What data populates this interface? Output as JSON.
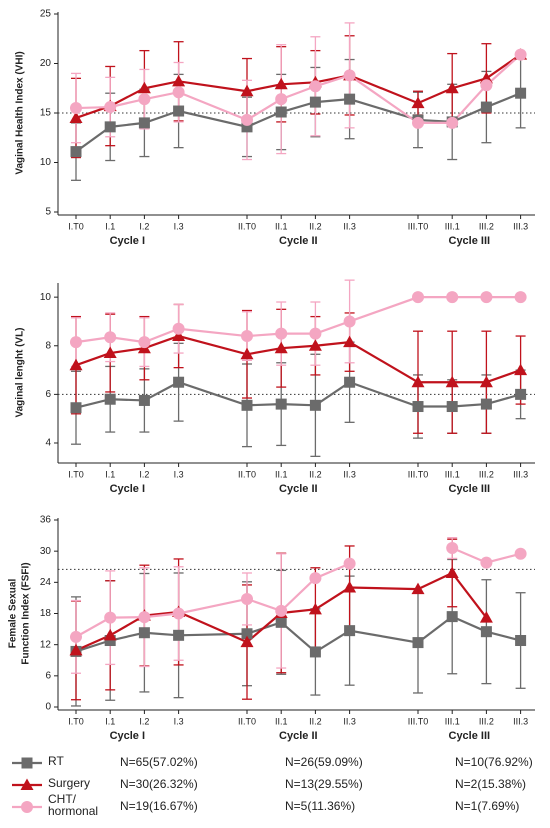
{
  "chart_data": [
    {
      "type": "line",
      "ylabel": [
        "Vaginal Health Index (VHI)"
      ],
      "categories": [
        "I.T0",
        "I.1",
        "I.2",
        "I.3",
        "II.T0",
        "II.1",
        "II.2",
        "II.3",
        "III.T0",
        "III.1",
        "III.2",
        "III.3"
      ],
      "group_labels": [
        "Cycle I",
        "Cycle II",
        "Cycle III"
      ],
      "ylim": [
        5,
        25
      ],
      "yticks": [
        5,
        10,
        15,
        20,
        25
      ],
      "reference_line": 15,
      "series": [
        {
          "color": "#6b6b6b",
          "marker": "square",
          "values": [
            11.1,
            13.6,
            14.0,
            15.2,
            13.6,
            15.1,
            16.1,
            16.4,
            14.3,
            14.1,
            15.6,
            17.0
          ],
          "errors": [
            2.9,
            3.4,
            3.4,
            3.7,
            3.0,
            3.8,
            3.5,
            4.0,
            2.8,
            3.8,
            3.6,
            3.5
          ]
        },
        {
          "color": "#c0121c",
          "marker": "triangle",
          "values": [
            14.5,
            15.7,
            17.5,
            18.2,
            17.2,
            17.9,
            18.1,
            18.8,
            16.0,
            17.5,
            18.5,
            20.9
          ],
          "errors": [
            4.0,
            4.0,
            3.8,
            4.0,
            3.3,
            3.8,
            3.2,
            4.0,
            1.2,
            3.5,
            3.5,
            null
          ]
        },
        {
          "color": "#f4a6c2",
          "marker": "circle",
          "values": [
            15.5,
            15.6,
            16.4,
            17.1,
            14.3,
            16.4,
            17.7,
            18.8,
            14.0,
            14.0,
            17.8,
            20.9
          ],
          "errors": [
            3.5,
            3.0,
            3.0,
            3.0,
            4.0,
            5.5,
            5.0,
            5.3,
            null,
            null,
            null,
            null
          ]
        }
      ]
    },
    {
      "type": "line",
      "ylabel": [
        "Vaginal lenght (VL)"
      ],
      "categories": [
        "I.T0",
        "I.1",
        "I.2",
        "I.3",
        "II.T0",
        "II.1",
        "II.2",
        "II.3",
        "III.T0",
        "III.1",
        "III.2",
        "III.3"
      ],
      "group_labels": [
        "Cycle I",
        "Cycle II",
        "Cycle III"
      ],
      "ylim": [
        3.3,
        10.5
      ],
      "yticks": [
        4,
        6,
        8,
        10
      ],
      "reference_line": 6,
      "series": [
        {
          "color": "#6b6b6b",
          "marker": "square",
          "values": [
            5.45,
            5.8,
            5.75,
            6.5,
            5.55,
            5.6,
            5.55,
            6.5,
            5.5,
            5.5,
            5.6,
            6.0
          ],
          "errors": [
            1.5,
            1.35,
            1.3,
            1.6,
            1.7,
            1.7,
            2.1,
            1.65,
            1.3,
            1.1,
            1.2,
            1.0
          ]
        },
        {
          "color": "#c0121c",
          "marker": "triangle",
          "values": [
            7.2,
            7.7,
            7.9,
            8.4,
            7.65,
            7.9,
            8.0,
            8.15,
            6.5,
            6.5,
            6.5,
            7.0
          ],
          "errors": [
            2.0,
            1.6,
            1.3,
            1.3,
            1.8,
            1.6,
            1.2,
            1.2,
            2.1,
            2.1,
            2.1,
            1.4
          ]
        },
        {
          "color": "#f4a6c2",
          "marker": "circle",
          "values": [
            8.15,
            8.35,
            8.15,
            8.7,
            8.4,
            8.5,
            8.5,
            9.0,
            10,
            10,
            10,
            10
          ],
          "errors": [
            1.0,
            1.0,
            1.0,
            1.0,
            1.0,
            1.3,
            1.3,
            1.7,
            null,
            null,
            null,
            null
          ]
        }
      ]
    },
    {
      "type": "line",
      "ylabel": [
        "Female Sexual",
        "Function Index (FSFI)"
      ],
      "categories": [
        "I.T0",
        "I.1",
        "I.2",
        "I.3",
        "II.T0",
        "II.1",
        "II.2",
        "II.3",
        "III.T0",
        "III.1",
        "III.2",
        "III.3"
      ],
      "group_labels": [
        "Cycle I",
        "Cycle II",
        "Cycle III"
      ],
      "ylim": [
        0,
        36
      ],
      "yticks": [
        0,
        6,
        12,
        18,
        24,
        30,
        36
      ],
      "reference_line": 26.5,
      "series": [
        {
          "color": "#6b6b6b",
          "marker": "square",
          "values": [
            10.7,
            12.8,
            14.3,
            13.8,
            14.1,
            16.3,
            10.6,
            14.7,
            12.4,
            17.4,
            14.5,
            12.8
          ],
          "errors": [
            10.5,
            11.5,
            11.4,
            12.0,
            10.0,
            10.0,
            8.3,
            10.5,
            9.7,
            11.0,
            10.0,
            9.2
          ]
        },
        {
          "color": "#c0121c",
          "marker": "triangle",
          "values": [
            10.9,
            13.8,
            17.6,
            18.3,
            12.5,
            18.1,
            18.8,
            23.0,
            22.7,
            25.8,
            17.2,
            null
          ],
          "errors": [
            9.5,
            10.5,
            9.7,
            10.2,
            11.0,
            11.5,
            8.0,
            8.0,
            null,
            6.5,
            null,
            null
          ]
        },
        {
          "color": "#f4a6c2",
          "marker": "circle",
          "values": [
            13.5,
            17.2,
            17.3,
            18.0,
            20.8,
            18.5,
            24.8,
            27.6,
            null,
            30.6,
            27.8,
            29.5
          ],
          "errors": [
            7.0,
            9.0,
            9.5,
            9.0,
            5.0,
            11.0,
            null,
            null,
            null,
            2.0,
            null,
            null
          ]
        }
      ]
    }
  ],
  "legend": {
    "rows": [
      {
        "name": "RT",
        "color": "#6b6b6b",
        "marker": "square",
        "cells": [
          "N=65(57.02%)",
          "N=26(59.09%)",
          "N=10(76.92%)"
        ]
      },
      {
        "name": "Surgery",
        "color": "#c0121c",
        "marker": "triangle",
        "cells": [
          "N=30(26.32%)",
          "N=13(29.55%)",
          "N=2(15.38%)"
        ]
      },
      {
        "name": "CHT/ hormonal",
        "color": "#f4a6c2",
        "marker": "circle",
        "cells": [
          "N=19(16.67%)",
          "N=5(11.36%)",
          "N=1(7.69%)"
        ]
      }
    ]
  }
}
